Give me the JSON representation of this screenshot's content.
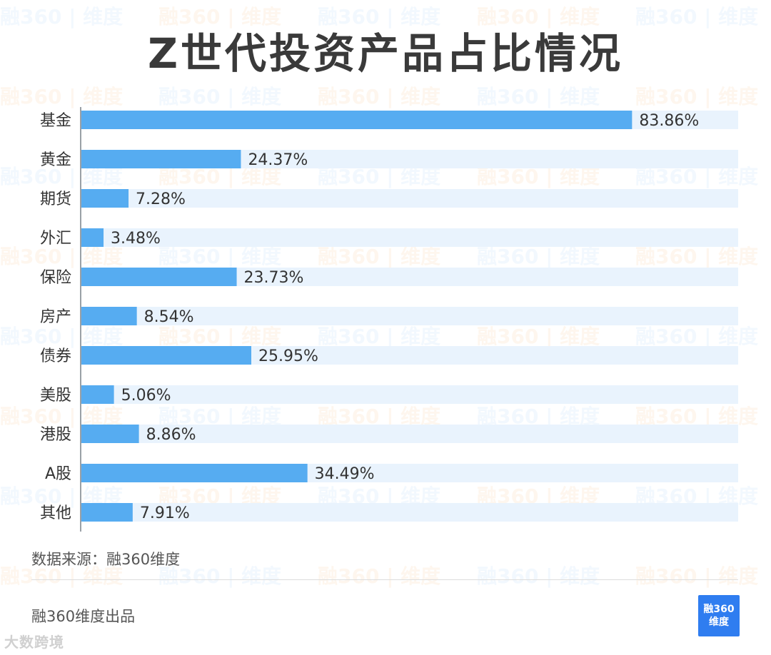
{
  "page": {
    "title": "Z世代投资产品占比情况",
    "source": "数据来源：融360维度",
    "produced_by": "融360维度出品",
    "brand_line1": "融360",
    "brand_line2": "维度",
    "corner_mark": "大数跨境",
    "watermark_text": "融360 | 维度"
  },
  "colors": {
    "bar": "#56acf1",
    "track": "#e9f3fd",
    "axis": "#9aa0a6",
    "label": "#333333"
  },
  "chart_data": {
    "type": "bar",
    "orientation": "horizontal",
    "title": "Z世代投资产品占比情况",
    "categories": [
      "基金",
      "黄金",
      "期货",
      "外汇",
      "保险",
      "房产",
      "债券",
      "美股",
      "港股",
      "A股",
      "其他"
    ],
    "values": [
      83.86,
      24.37,
      7.28,
      3.48,
      23.73,
      8.54,
      25.95,
      5.06,
      8.86,
      34.49,
      7.91
    ],
    "value_labels": [
      "83.86%",
      "24.37%",
      "7.28%",
      "3.48%",
      "23.73%",
      "8.54%",
      "25.95%",
      "5.06%",
      "8.86%",
      "34.49%",
      "7.91%"
    ],
    "xlim": [
      0,
      100
    ],
    "unit": "%",
    "grid": false,
    "legend": "none"
  }
}
